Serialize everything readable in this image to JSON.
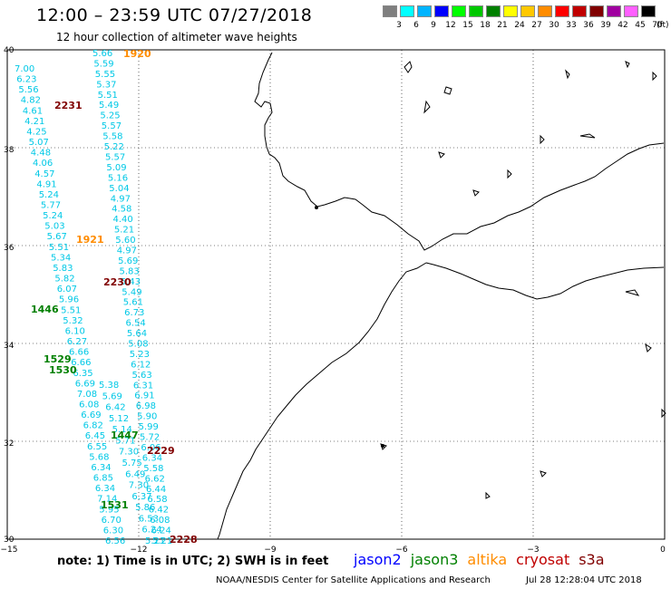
{
  "header": {
    "title": "12:00 – 23:59 UTC 07/27/2018",
    "subtitle": "12 hour collection of altimeter wave heights"
  },
  "color_scale": {
    "unit": "(ft)",
    "bins": [
      {
        "label": "3",
        "color": "#7f7f7f"
      },
      {
        "label": "6",
        "color": "#00ffff"
      },
      {
        "label": "9",
        "color": "#00b4ff"
      },
      {
        "label": "12",
        "color": "#0000ff"
      },
      {
        "label": "15",
        "color": "#00ff00"
      },
      {
        "label": "18",
        "color": "#00c800"
      },
      {
        "label": "21",
        "color": "#008000"
      },
      {
        "label": "24",
        "color": "#ffff00"
      },
      {
        "label": "27",
        "color": "#ffc800"
      },
      {
        "label": "30",
        "color": "#ff8c00"
      },
      {
        "label": "33",
        "color": "#ff0000"
      },
      {
        "label": "36",
        "color": "#c00000"
      },
      {
        "label": "39",
        "color": "#800000"
      },
      {
        "label": "42",
        "color": "#a000a0"
      },
      {
        "label": "45",
        "color": "#ff60ff"
      },
      {
        "label": "70",
        "color": "#000000"
      }
    ]
  },
  "axes": {
    "lat_ticks": [
      "40",
      "38",
      "36",
      "34",
      "32",
      "30"
    ],
    "lon_ticks": [
      "−15",
      "−12",
      "−9",
      "−6",
      "−3",
      "0"
    ]
  },
  "colors": {
    "wave": "#00c8e6",
    "jason2": "#0000ff",
    "jason3": "#008000",
    "altika": "#ff8c00",
    "cryosat": "#c00000",
    "s3a": "#800000",
    "coast": "#000000"
  },
  "pass_labels": [
    {
      "text": "1920",
      "sat": "altika"
    },
    {
      "text": "2231",
      "sat": "s3a"
    },
    {
      "text": "1921",
      "sat": "altika"
    },
    {
      "text": "2230",
      "sat": "s3a"
    },
    {
      "text": "1446",
      "sat": "jason3"
    },
    {
      "text": "1529",
      "sat": "jason3"
    },
    {
      "text": "1530",
      "sat": "jason3"
    },
    {
      "text": "1447",
      "sat": "jason3"
    },
    {
      "text": "2229",
      "sat": "s3a"
    },
    {
      "text": "1531",
      "sat": "jason3"
    },
    {
      "text": "2228",
      "sat": "s3a"
    }
  ],
  "wave_track_1": [
    "7.00",
    "6.23",
    "5.56",
    "4.82",
    "4.61",
    "4.21",
    "4.25",
    "5.07",
    "4.48",
    "4.06",
    "4.57",
    "4.91",
    "5.24",
    "5.77",
    "5.24",
    "5.03",
    "5.67",
    "5.51",
    "5.34",
    "5.83",
    "5.82",
    "6.07",
    "5.96",
    "5.51",
    "5.32",
    "6.10",
    "6.27",
    "6.66",
    "6.66",
    "6.35",
    "6.69",
    "7.08",
    "6.08",
    "6.69",
    "6.82",
    "6.45",
    "6.55",
    "5.68",
    "6.34",
    "6.85",
    "6.34",
    "7.14",
    "5.95",
    "6.70",
    "6.30",
    "6.56"
  ],
  "wave_track_2": [
    "5.66",
    "5.59",
    "5.55",
    "5.37",
    "5.51",
    "5.49",
    "5.25",
    "5.57",
    "5.58",
    "5.22",
    "5.57",
    "5.09",
    "5.16",
    "5.04",
    "4.97",
    "4.58",
    "4.40",
    "5.21",
    "5.60",
    "4.97",
    "5.69",
    "5.83",
    "5.43",
    "5.49",
    "5.61",
    "6.73",
    "6.54",
    "5.64",
    "5.08",
    "5.23",
    "6.12",
    "5.63",
    "6.31",
    "6.91",
    "6.98",
    "5.90",
    "5.99",
    "5.72",
    "6.06",
    "6.34",
    "5.58",
    "6.62",
    "6.44",
    "6.58",
    "6.42",
    "6.08",
    "6.24",
    "5.21"
  ],
  "wave_track_3": [
    "5.38",
    "5.69",
    "6.42",
    "5.12",
    "5.14",
    "5.71",
    "7.30",
    "5.75",
    "6.49",
    "7.30",
    "6.37",
    "5.86",
    "6.53",
    "6.24",
    "5.21"
  ],
  "footer": {
    "note": "note:  1) Time is in UTC;  2) SWH is in feet",
    "legend": [
      {
        "name": "jason2",
        "sat": "jason2"
      },
      {
        "name": "jason3",
        "sat": "jason3"
      },
      {
        "name": "altika",
        "sat": "altika"
      },
      {
        "name": "cryosat",
        "sat": "cryosat"
      },
      {
        "name": "s3a",
        "sat": "s3a"
      }
    ],
    "credit": "NOAA/NESDIS Center for Satellite Applications and Research",
    "timestamp": "Jul 28 12:28:04 UTC 2018"
  }
}
